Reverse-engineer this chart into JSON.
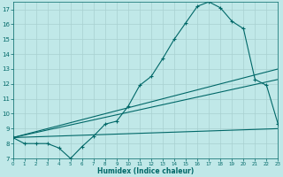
{
  "bg_color": "#c0e8e8",
  "grid_color": "#a8d0d0",
  "line_color": "#006868",
  "x_label": "Humidex (Indice chaleur)",
  "xlim": [
    0,
    23
  ],
  "ylim": [
    7,
    17.5
  ],
  "yticks": [
    7,
    8,
    9,
    10,
    11,
    12,
    13,
    14,
    15,
    16,
    17
  ],
  "xticks": [
    0,
    1,
    2,
    3,
    4,
    5,
    6,
    7,
    8,
    9,
    10,
    11,
    12,
    13,
    14,
    15,
    16,
    17,
    18,
    19,
    20,
    21,
    22,
    23
  ],
  "main_x": [
    0,
    1,
    2,
    3,
    4,
    5,
    6,
    7,
    8,
    9,
    10,
    11,
    12,
    13,
    14,
    15,
    16,
    17,
    18,
    19,
    20,
    21,
    22,
    23
  ],
  "main_y": [
    8.4,
    8.0,
    8.0,
    8.0,
    7.7,
    7.0,
    7.8,
    8.5,
    9.3,
    9.5,
    10.5,
    11.9,
    12.5,
    13.7,
    15.0,
    16.1,
    17.2,
    17.5,
    17.1,
    16.2,
    15.7,
    12.3,
    11.9,
    9.3
  ],
  "trend1_x": [
    0,
    23
  ],
  "trend1_y": [
    8.4,
    13.0
  ],
  "trend2_x": [
    0,
    23
  ],
  "trend2_y": [
    8.4,
    12.3
  ],
  "trend3_x": [
    0,
    23
  ],
  "trend3_y": [
    8.4,
    9.0
  ]
}
